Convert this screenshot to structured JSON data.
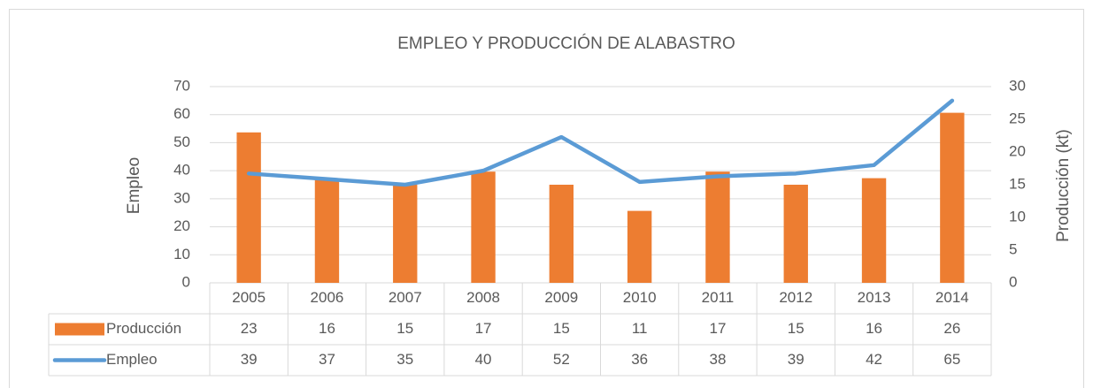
{
  "chart_data": {
    "type": "bar",
    "title": "EMPLEO Y PRODUCCIÓN DE ALABASTRO",
    "ylabel": "Empleo",
    "y2label": "Producción (kt)",
    "categories": [
      "2005",
      "2006",
      "2007",
      "2008",
      "2009",
      "2010",
      "2011",
      "2012",
      "2013",
      "2014"
    ],
    "series": [
      {
        "name": "Producción",
        "type": "bar",
        "axis": "y2",
        "color": "#ed7d31",
        "values": [
          23,
          16,
          15,
          17,
          15,
          11,
          17,
          15,
          16,
          26
        ]
      },
      {
        "name": "Empleo",
        "type": "line",
        "axis": "y",
        "color": "#5b9bd5",
        "values": [
          39,
          37,
          35,
          40,
          52,
          36,
          38,
          39,
          42,
          65
        ]
      }
    ],
    "ylim": [
      0,
      70
    ],
    "yticks": [
      0,
      10,
      20,
      30,
      40,
      50,
      60,
      70
    ],
    "y2lim": [
      0,
      30
    ],
    "y2ticks": [
      0,
      5,
      10,
      15,
      20,
      25,
      30
    ],
    "grid": true,
    "data_table": true
  }
}
